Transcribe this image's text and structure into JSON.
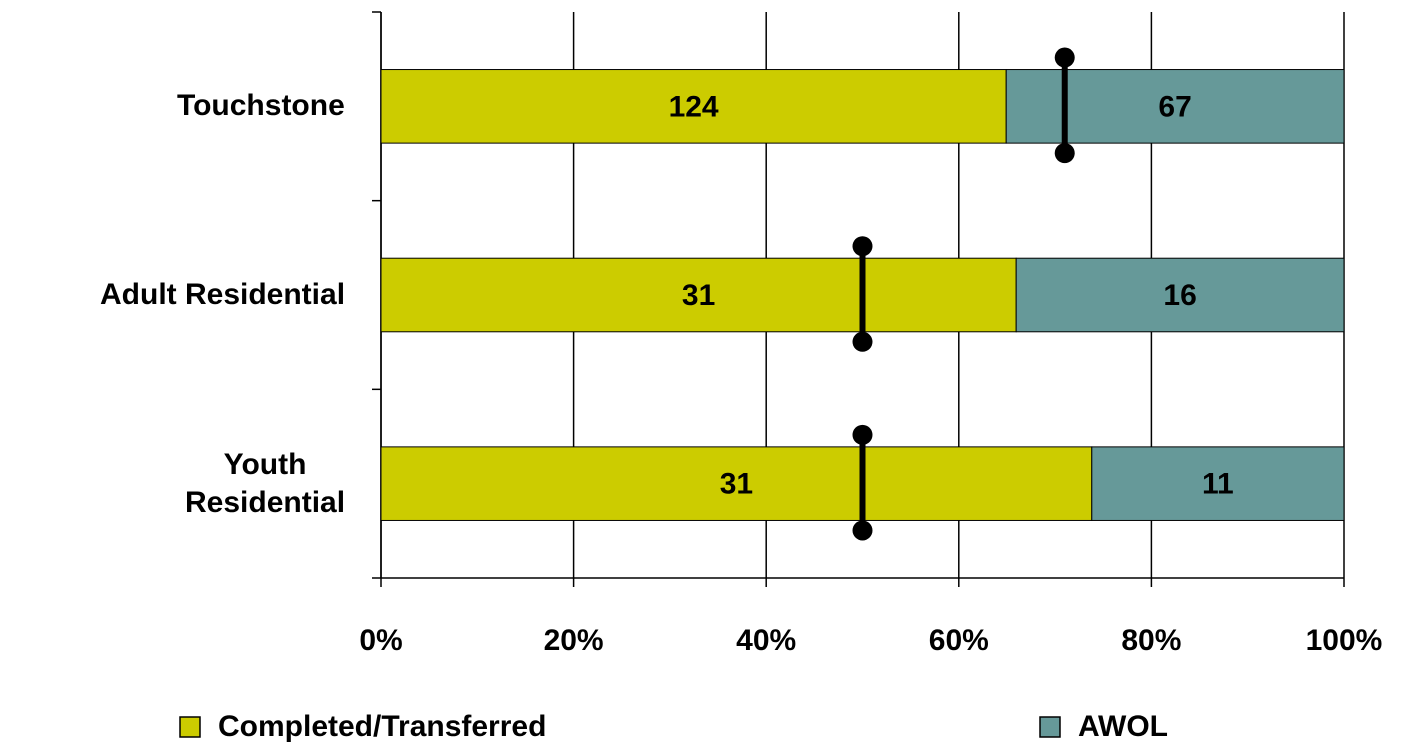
{
  "chart_data": {
    "type": "bar",
    "orientation": "horizontal",
    "stacking": "percent",
    "categories": [
      "Touchstone",
      "Adult Residential",
      "Youth\nResidential"
    ],
    "series": [
      {
        "name": "Completed/Transferred",
        "color": "#cccc00",
        "values": [
          124,
          31,
          31
        ]
      },
      {
        "name": "AWOL",
        "color": "#669999",
        "values": [
          67,
          16,
          11
        ]
      }
    ],
    "benchmark": [
      71,
      50,
      50
    ],
    "xlim": [
      0,
      100
    ],
    "xticks": [
      {
        "value": 0,
        "label": "0%"
      },
      {
        "value": 20,
        "label": "20%"
      },
      {
        "value": 40,
        "label": "40%"
      },
      {
        "value": 60,
        "label": "60%"
      },
      {
        "value": 80,
        "label": "80%"
      },
      {
        "value": 100,
        "label": "100%"
      }
    ],
    "grid": true
  }
}
